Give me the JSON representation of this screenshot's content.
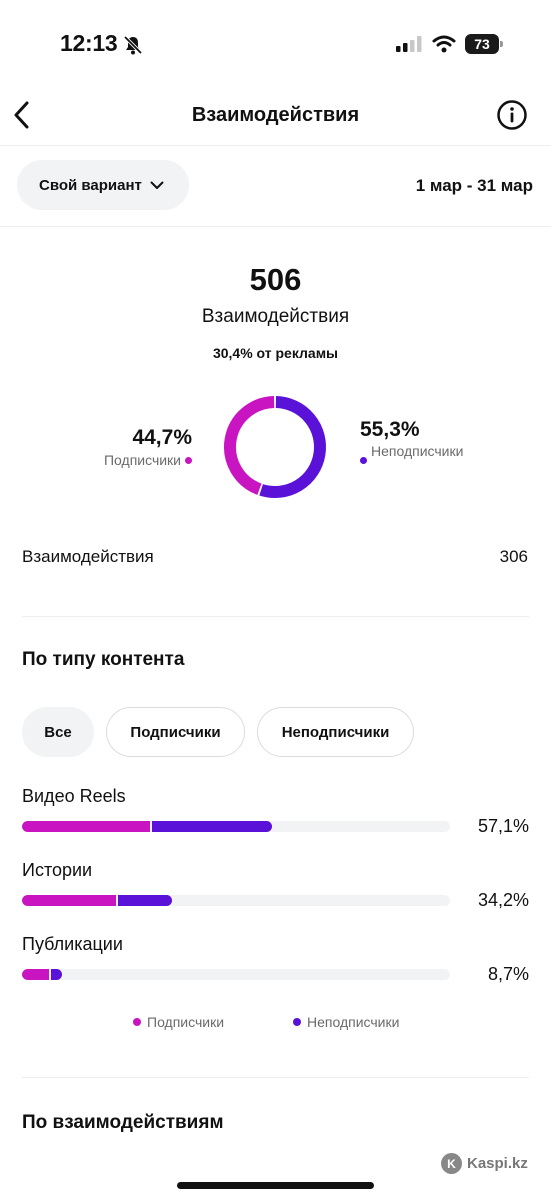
{
  "status_bar": {
    "time": "12:13",
    "battery": "73"
  },
  "nav": {
    "title": "Взаимодействия"
  },
  "filter": {
    "range_label": "Свой вариант",
    "date_range": "1 мар - 31 мар"
  },
  "summary": {
    "total": "506",
    "total_label": "Взаимодействия",
    "ads_share": "30,4% от рекламы",
    "followers_pct": "44,7%",
    "followers_label": "Подписчики",
    "nonfollowers_pct": "55,3%",
    "nonfollowers_label": "Неподписчики",
    "followers_fraction": 0.447,
    "nonfollowers_fraction": 0.553
  },
  "interactions_row": {
    "label": "Взаимодействия",
    "value": "306"
  },
  "content_type": {
    "title": "По типу контента",
    "tabs": [
      "Все",
      "Подписчики",
      "Неподписчики"
    ],
    "bars": [
      {
        "label": "Видео Reels",
        "pct": "57,1%",
        "followers_fraction": 0.3,
        "nonfollowers_fraction": 0.28
      },
      {
        "label": "Истории",
        "pct": "34,2%",
        "followers_fraction": 0.22,
        "nonfollowers_fraction": 0.125
      },
      {
        "label": "Публикации",
        "pct": "8,7%",
        "followers_fraction": 0.063,
        "nonfollowers_fraction": 0.025
      }
    ],
    "legend": [
      "Подписчики",
      "Неподписчики"
    ]
  },
  "by_interactions": {
    "title": "По взаимодействиям"
  },
  "colors": {
    "followers": "#c914c2",
    "nonfollowers": "#5a12d8"
  },
  "watermark": "Kaspi.kz"
}
